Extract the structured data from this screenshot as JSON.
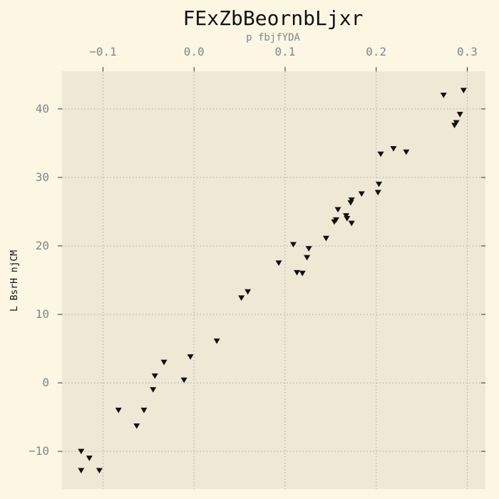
{
  "chart_data": {
    "type": "scatter",
    "title": "FExZbBeornbLjxr",
    "xlabel": "p fbjfYDA",
    "ylabel": "L BsrH njCM",
    "xlim": [
      -0.145,
      0.32
    ],
    "ylim": [
      -15.5,
      45.5
    ],
    "xticks": [
      -0.1,
      0.0,
      0.1,
      0.2,
      0.3
    ],
    "xtick_labels": [
      "−0.1",
      "0.0",
      "0.1",
      "0.2",
      "0.3"
    ],
    "yticks": [
      -10,
      0,
      10,
      20,
      30,
      40
    ],
    "ytick_labels": [
      "−10",
      "0",
      "10",
      "20",
      "30",
      "40"
    ],
    "x_axis_position": "top",
    "grid": true,
    "marker": "triangle-down",
    "colors": {
      "background": "#fdf6e3",
      "plot_area": "#eee8d5",
      "marker": "#111111"
    },
    "series": [
      {
        "points": [
          [
            -0.124,
            -12.8
          ],
          [
            -0.124,
            -10.0
          ],
          [
            -0.115,
            -11.0
          ],
          [
            -0.104,
            -12.8
          ],
          [
            -0.083,
            -4.0
          ],
          [
            -0.063,
            -6.3
          ],
          [
            -0.055,
            -4.0
          ],
          [
            -0.045,
            -1.0
          ],
          [
            -0.043,
            1.0
          ],
          [
            -0.033,
            3.0
          ],
          [
            -0.011,
            0.4
          ],
          [
            -0.004,
            3.8
          ],
          [
            0.025,
            6.1
          ],
          [
            0.052,
            12.4
          ],
          [
            0.059,
            13.3
          ],
          [
            0.093,
            17.5
          ],
          [
            0.109,
            20.2
          ],
          [
            0.113,
            16.1
          ],
          [
            0.119,
            16.0
          ],
          [
            0.124,
            18.3
          ],
          [
            0.126,
            19.6
          ],
          [
            0.145,
            21.1
          ],
          [
            0.154,
            23.5
          ],
          [
            0.156,
            23.8
          ],
          [
            0.158,
            25.3
          ],
          [
            0.167,
            24.4
          ],
          [
            0.168,
            24.0
          ],
          [
            0.172,
            26.3
          ],
          [
            0.173,
            26.7
          ],
          [
            0.173,
            23.3
          ],
          [
            0.184,
            27.6
          ],
          [
            0.202,
            27.8
          ],
          [
            0.203,
            29.0
          ],
          [
            0.205,
            33.4
          ],
          [
            0.219,
            34.2
          ],
          [
            0.233,
            33.7
          ],
          [
            0.274,
            42.0
          ],
          [
            0.286,
            37.6
          ],
          [
            0.288,
            38.0
          ],
          [
            0.292,
            39.2
          ],
          [
            0.296,
            42.7
          ]
        ]
      }
    ]
  }
}
